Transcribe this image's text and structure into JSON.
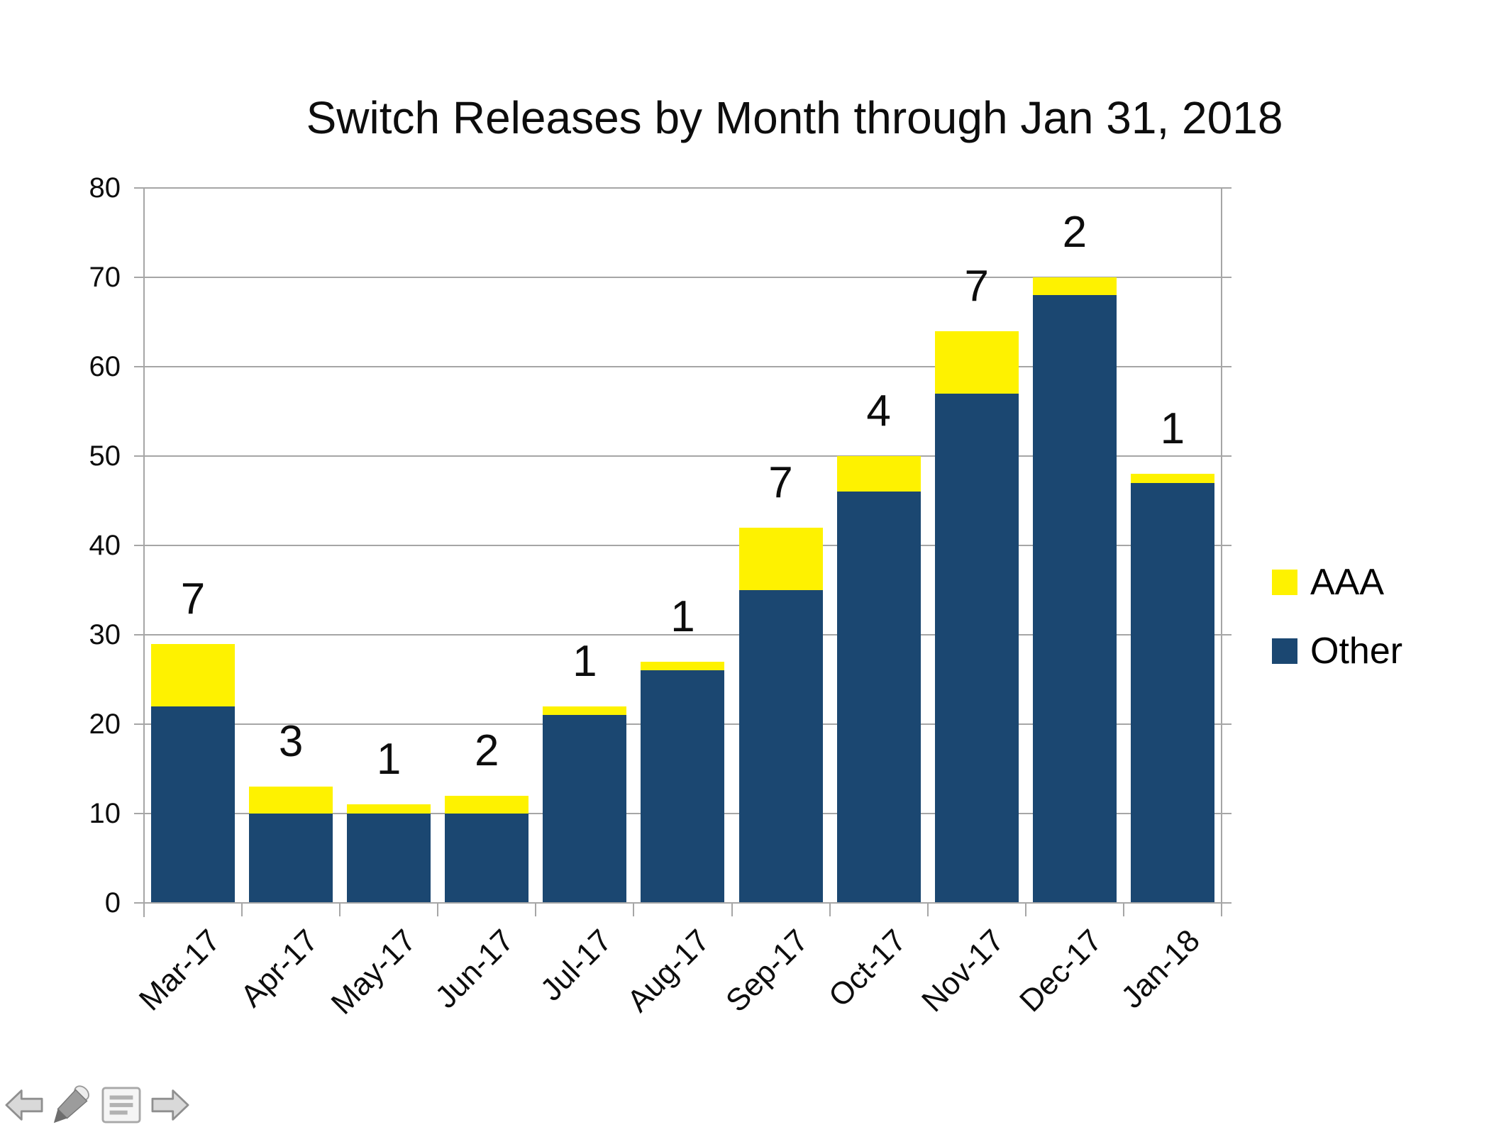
{
  "title": "Switch Releases by Month through Jan 31, 2018",
  "chart_data": {
    "type": "bar",
    "stacked": true,
    "title": "Switch Releases by Month through Jan 31, 2018",
    "categories": [
      "Mar-17",
      "Apr-17",
      "May-17",
      "Jun-17",
      "Jul-17",
      "Aug-17",
      "Sep-17",
      "Oct-17",
      "Nov-17",
      "Dec-17",
      "Jan-18"
    ],
    "series": [
      {
        "name": "AAA",
        "color": "#FEF200",
        "values": [
          7,
          3,
          1,
          2,
          1,
          1,
          7,
          4,
          7,
          2,
          1
        ]
      },
      {
        "name": "Other",
        "color": "#1B4771",
        "values": [
          22,
          10,
          10,
          10,
          21,
          26,
          35,
          46,
          57,
          68,
          47
        ]
      }
    ],
    "totals": [
      29,
      13,
      11,
      12,
      22,
      27,
      42,
      50,
      64,
      70,
      48
    ],
    "data_labels": [
      "7",
      "3",
      "1",
      "2",
      "1",
      "1",
      "7",
      "4",
      "7",
      "2",
      "1"
    ],
    "xlabel": "",
    "ylabel": "",
    "ylim": [
      0,
      80
    ],
    "y_ticks": [
      0,
      10,
      20,
      30,
      40,
      50,
      60,
      70,
      80
    ],
    "grid": true,
    "legend_position": "right"
  },
  "legend": {
    "items": [
      {
        "label": "AAA",
        "color": "#FEF200"
      },
      {
        "label": "Other",
        "color": "#1B4771"
      }
    ]
  },
  "nav_controls": {
    "icons": [
      "back-arrow",
      "pen",
      "slide-menu",
      "forward-arrow"
    ]
  },
  "colors": {
    "background": "#FFFFFF",
    "grid": "#A6A6A6",
    "axis": "#A6A6A6",
    "text": "#000000"
  }
}
